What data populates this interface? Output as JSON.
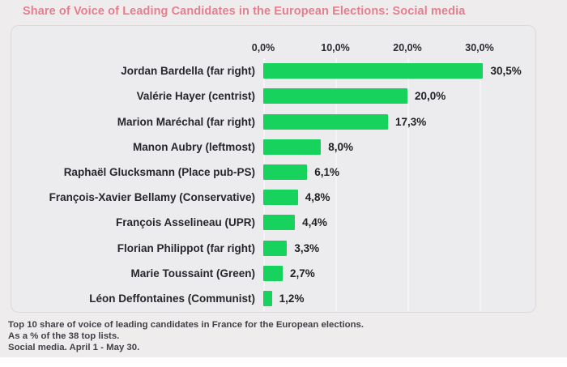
{
  "title": "Share of Voice of Leading Candidates in the European Elections: Social media",
  "footer": {
    "line1": "Top 10 share of voice of leading candidates in France for the European elections.",
    "line2": "As a % of the 38 top lists.",
    "line3": "Social media. April 1 - May 30."
  },
  "colors": {
    "title": "#e57f8d",
    "bar": "#17d35e",
    "page_bg": "#efecee",
    "panel_bg": "#ecebee",
    "panel_border": "#dcd9dd",
    "grid": "#f5f3f6",
    "label_text": "#26262c",
    "footer_text": "#424147"
  },
  "chart_data": {
    "type": "bar",
    "orientation": "horizontal",
    "title": "Share of Voice of Leading Candidates in the European Elections: Social media",
    "categories": [
      "Jordan Bardella (far right)",
      "Valérie Hayer (centrist)",
      "Marion Maréchal (far right)",
      "Manon Aubry (leftmost)",
      "Raphaël Glucksmann (Place pub-PS)",
      "François-Xavier Bellamy (Conservative)",
      "François Asselineau (UPR)",
      "Florian Philippot (far right)",
      "Marie Toussaint (Green)",
      "Léon Deffontaines (Communist)"
    ],
    "values": [
      30.5,
      20.0,
      17.3,
      8.0,
      6.1,
      4.8,
      4.4,
      3.3,
      2.7,
      1.2
    ],
    "value_labels": [
      "30,5%",
      "20,0%",
      "17,3%",
      "8,0%",
      "6,1%",
      "4,8%",
      "4,4%",
      "3,3%",
      "2,7%",
      "1,2%"
    ],
    "xticks": [
      {
        "value": 0,
        "label": "0,0%"
      },
      {
        "value": 10,
        "label": "10,0%"
      },
      {
        "value": 20,
        "label": "20,0%"
      },
      {
        "value": 30,
        "label": "30,0%"
      }
    ],
    "xlim": [
      0,
      34
    ],
    "ylabel": "",
    "xlabel": "",
    "grid": "vertical",
    "legend": "none",
    "bar_color": "#17d35e"
  }
}
